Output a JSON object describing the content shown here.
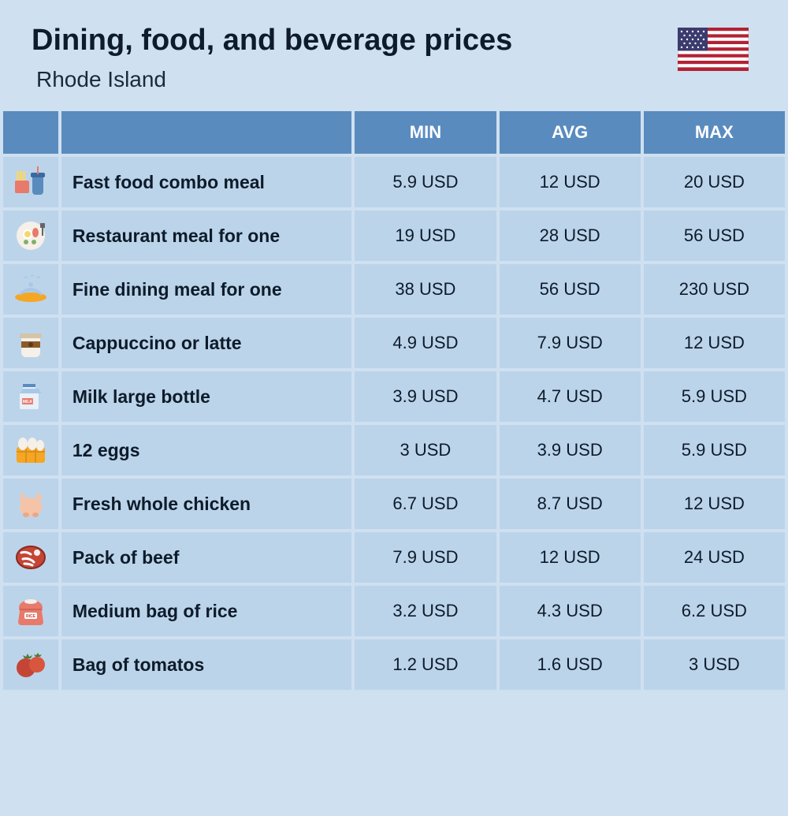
{
  "header": {
    "title": "Dining, food, and beverage prices",
    "subtitle": "Rhode Island"
  },
  "columns": {
    "min": "MIN",
    "avg": "AVG",
    "max": "MAX"
  },
  "currency": "USD",
  "rows": [
    {
      "icon": "fast-food",
      "label": "Fast food combo meal",
      "min": "5.9 USD",
      "avg": "12 USD",
      "max": "20 USD"
    },
    {
      "icon": "restaurant",
      "label": "Restaurant meal for one",
      "min": "19 USD",
      "avg": "28 USD",
      "max": "56 USD"
    },
    {
      "icon": "fine-dining",
      "label": "Fine dining meal for one",
      "min": "38 USD",
      "avg": "56 USD",
      "max": "230 USD"
    },
    {
      "icon": "coffee",
      "label": "Cappuccino or latte",
      "min": "4.9 USD",
      "avg": "7.9 USD",
      "max": "12 USD"
    },
    {
      "icon": "milk",
      "label": "Milk large bottle",
      "min": "3.9 USD",
      "avg": "4.7 USD",
      "max": "5.9 USD"
    },
    {
      "icon": "eggs",
      "label": "12 eggs",
      "min": "3 USD",
      "avg": "3.9 USD",
      "max": "5.9 USD"
    },
    {
      "icon": "chicken",
      "label": "Fresh whole chicken",
      "min": "6.7 USD",
      "avg": "8.7 USD",
      "max": "12 USD"
    },
    {
      "icon": "beef",
      "label": "Pack of beef",
      "min": "7.9 USD",
      "avg": "12 USD",
      "max": "24 USD"
    },
    {
      "icon": "rice",
      "label": "Medium bag of rice",
      "min": "3.2 USD",
      "avg": "4.3 USD",
      "max": "6.2 USD"
    },
    {
      "icon": "tomato",
      "label": "Bag of tomatos",
      "min": "1.2 USD",
      "avg": "1.6 USD",
      "max": "3 USD"
    }
  ],
  "styling": {
    "background_color": "#cfe0f0",
    "header_bg": "#5a8bbf",
    "header_text": "#ffffff",
    "row_bg": "#bcd4ea",
    "text_color": "#0d1b2a",
    "title_fontsize": 38,
    "subtitle_fontsize": 28,
    "cell_fontsize": 22,
    "label_fontweight": 800,
    "icon_colors": {
      "fast-food": [
        "#f5a623",
        "#5a8bbf"
      ],
      "restaurant": [
        "#e87a6b",
        "#f5d76e"
      ],
      "fine-dining": [
        "#f5a623",
        "#a8c8e8"
      ],
      "coffee": [
        "#8b5a2b",
        "#f5f0e8"
      ],
      "milk": [
        "#a8c8e8",
        "#ffffff",
        "#e87a6b"
      ],
      "eggs": [
        "#f5a623",
        "#f5f0e8"
      ],
      "chicken": [
        "#f5c4a8"
      ],
      "beef": [
        "#c44536",
        "#ffffff"
      ],
      "rice": [
        "#e87a6b",
        "#ffffff"
      ],
      "tomato": [
        "#c44536",
        "#4a7c3a"
      ]
    }
  }
}
